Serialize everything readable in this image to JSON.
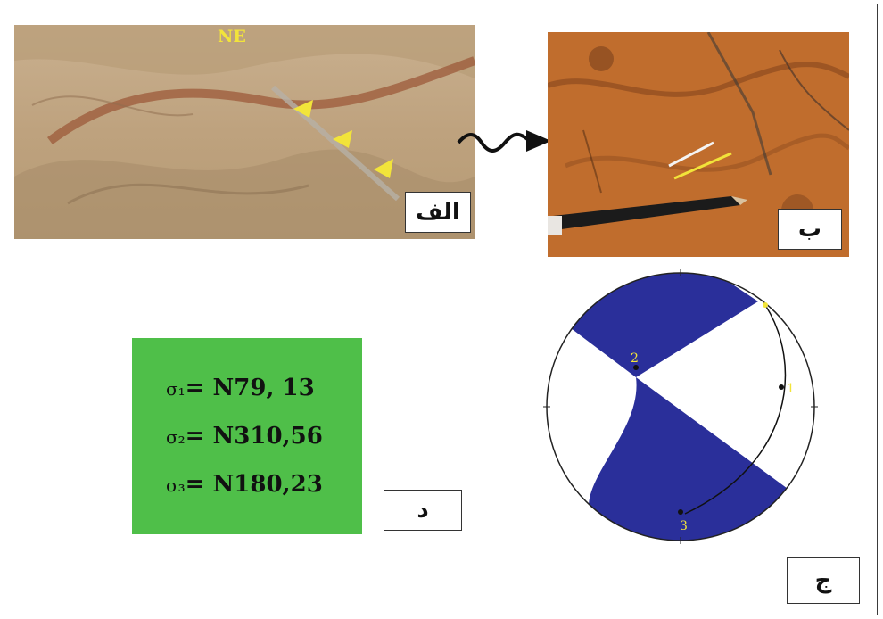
{
  "panels": {
    "a": {
      "label": "الف",
      "annotation": "NE"
    },
    "b": {
      "label": "ب"
    },
    "c": {
      "label": "ج"
    },
    "d": {
      "label": "د"
    }
  },
  "stress": [
    {
      "symbol": "σ₁",
      "value": "= N79, 13"
    },
    {
      "symbol": "σ₂",
      "value": "= N310,56"
    },
    {
      "symbol": "σ₃",
      "value": "= N180,23"
    }
  ],
  "stereonet": {
    "labels": [
      "1",
      "2",
      "3"
    ],
    "fill_color": "#2a2f9a"
  },
  "colors": {
    "box_green": "#4fbf49",
    "marker_yellow": "#f2e43a"
  }
}
